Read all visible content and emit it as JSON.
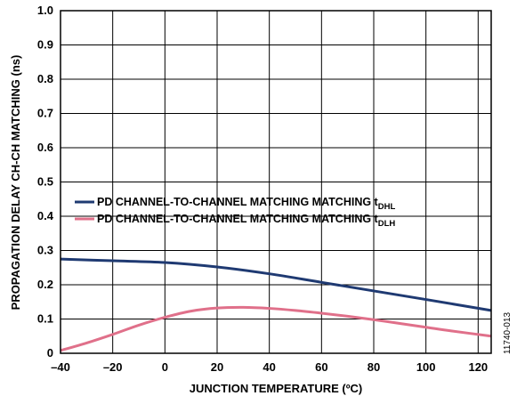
{
  "chart_data": {
    "type": "line",
    "xlabel": "JUNCTION TEMPERATURE (ºC)",
    "ylabel": "PROPAGATION DELAY CH-CH MATCHING (ns)",
    "xlim": [
      -40,
      125
    ],
    "ylim": [
      0,
      1.0
    ],
    "xticks": [
      -40,
      -20,
      0,
      20,
      40,
      60,
      80,
      100,
      120
    ],
    "xtick_labels": [
      "–40",
      "–20",
      "0",
      "20",
      "40",
      "60",
      "80",
      "100",
      "120"
    ],
    "yticks": [
      0,
      0.1,
      0.2,
      0.3,
      0.4,
      0.5,
      0.6,
      0.7,
      0.8,
      0.9,
      1.0
    ],
    "ytick_labels": [
      "0",
      "0.1",
      "0.2",
      "0.3",
      "0.4",
      "0.5",
      "0.6",
      "0.7",
      "0.8",
      "0.9",
      "1.0"
    ],
    "grid": true,
    "legend_position": "center-left",
    "figure_id": "11740-013",
    "series": [
      {
        "legend_main": "PD CHANNEL-TO-CHANNEL MATCHING MATCHING t",
        "legend_sub": "DHL",
        "color": "#1f3a72",
        "x": [
          -40,
          -20,
          0,
          20,
          40,
          60,
          80,
          100,
          125
        ],
        "y": [
          0.275,
          0.27,
          0.265,
          0.252,
          0.232,
          0.207,
          0.182,
          0.157,
          0.125
        ]
      },
      {
        "legend_main": "PD CHANNEL-TO-CHANNEL MATCHING MATCHING t",
        "legend_sub": "DLH",
        "color": "#e0708a",
        "x": [
          -40,
          -30,
          -20,
          -10,
          0,
          10,
          20,
          30,
          40,
          50,
          60,
          70,
          80,
          90,
          100,
          110,
          125
        ],
        "y": [
          0.008,
          0.03,
          0.055,
          0.082,
          0.105,
          0.123,
          0.132,
          0.134,
          0.131,
          0.125,
          0.117,
          0.108,
          0.098,
          0.087,
          0.076,
          0.065,
          0.05
        ]
      }
    ]
  }
}
